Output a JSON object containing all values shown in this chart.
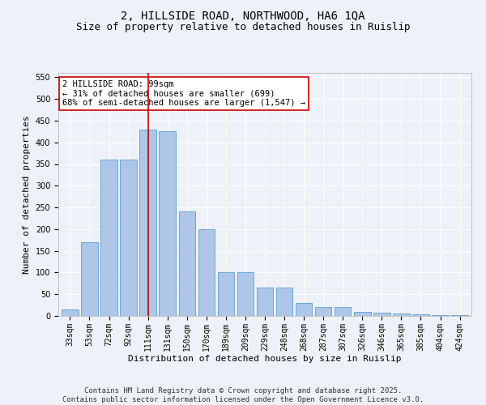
{
  "title_line1": "2, HILLSIDE ROAD, NORTHWOOD, HA6 1QA",
  "title_line2": "Size of property relative to detached houses in Ruislip",
  "xlabel": "Distribution of detached houses by size in Ruislip",
  "ylabel": "Number of detached properties",
  "categories": [
    "33sqm",
    "53sqm",
    "72sqm",
    "92sqm",
    "111sqm",
    "131sqm",
    "150sqm",
    "170sqm",
    "189sqm",
    "209sqm",
    "229sqm",
    "248sqm",
    "268sqm",
    "287sqm",
    "307sqm",
    "326sqm",
    "346sqm",
    "365sqm",
    "385sqm",
    "404sqm",
    "424sqm"
  ],
  "values": [
    15,
    170,
    360,
    360,
    430,
    425,
    240,
    200,
    100,
    100,
    65,
    65,
    30,
    20,
    20,
    10,
    8,
    5,
    3,
    1,
    2
  ],
  "bar_color": "#aec6e8",
  "bar_edge_color": "#5a9fd4",
  "vline_index": 4,
  "vline_color": "#cc0000",
  "annotation_line1": "2 HILLSIDE ROAD: 99sqm",
  "annotation_line2": "← 31% of detached houses are smaller (699)",
  "annotation_line3": "68% of semi-detached houses are larger (1,547) →",
  "annotation_box_color": "#cc0000",
  "ylim": [
    0,
    560
  ],
  "yticks": [
    0,
    50,
    100,
    150,
    200,
    250,
    300,
    350,
    400,
    450,
    500,
    550
  ],
  "bg_color": "#eef2f8",
  "footer_text": "Contains HM Land Registry data © Crown copyright and database right 2025.\nContains public sector information licensed under the Open Government Licence v3.0.",
  "title_fontsize": 10,
  "subtitle_fontsize": 9,
  "axis_label_fontsize": 8,
  "tick_fontsize": 7,
  "annotation_fontsize": 7.5,
  "footer_fontsize": 6.5
}
